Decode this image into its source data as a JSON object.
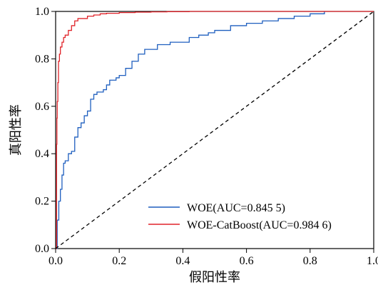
{
  "chart_data": {
    "type": "line",
    "xlabel": "假阳性率",
    "ylabel": "真阳性率",
    "xlim": [
      0.0,
      1.0
    ],
    "ylim": [
      0.0,
      1.0
    ],
    "x_ticks": [
      "0.0",
      "0.2",
      "0.4",
      "0.6",
      "0.8",
      "1.0"
    ],
    "y_ticks": [
      "0.0",
      "0.2",
      "0.4",
      "0.6",
      "0.8",
      "1.0"
    ],
    "grid": false,
    "legend_position": "bottom-right",
    "series": [
      {
        "name": "WOE(AUC=0.845 5)",
        "color": "#1f5fbf",
        "x": [
          0.0,
          0.005,
          0.01,
          0.015,
          0.02,
          0.025,
          0.03,
          0.04,
          0.05,
          0.06,
          0.07,
          0.08,
          0.09,
          0.1,
          0.11,
          0.12,
          0.13,
          0.14,
          0.15,
          0.16,
          0.17,
          0.18,
          0.19,
          0.2,
          0.22,
          0.24,
          0.26,
          0.28,
          0.3,
          0.32,
          0.34,
          0.36,
          0.38,
          0.4,
          0.42,
          0.45,
          0.48,
          0.5,
          0.55,
          0.6,
          0.65,
          0.7,
          0.75,
          0.8,
          0.845
        ],
        "y": [
          0.0,
          0.12,
          0.2,
          0.25,
          0.31,
          0.36,
          0.37,
          0.4,
          0.41,
          0.47,
          0.51,
          0.53,
          0.56,
          0.58,
          0.63,
          0.65,
          0.66,
          0.66,
          0.67,
          0.69,
          0.71,
          0.71,
          0.72,
          0.73,
          0.76,
          0.79,
          0.82,
          0.84,
          0.84,
          0.86,
          0.86,
          0.87,
          0.87,
          0.87,
          0.89,
          0.9,
          0.91,
          0.92,
          0.94,
          0.95,
          0.96,
          0.97,
          0.98,
          0.99,
          1.0
        ]
      },
      {
        "name": "WOE-CatBoost(AUC=0.984 6)",
        "color": "#e0242a",
        "x": [
          0.0,
          0.003,
          0.004,
          0.005,
          0.007,
          0.009,
          0.012,
          0.015,
          0.02,
          0.025,
          0.03,
          0.04,
          0.05,
          0.06,
          0.07,
          0.08,
          0.1,
          0.12,
          0.14,
          0.16,
          0.2,
          0.25,
          0.3,
          0.35,
          0.42,
          0.5,
          0.6,
          0.7,
          0.8,
          0.9,
          1.0
        ],
        "y": [
          0.0,
          0.44,
          0.55,
          0.62,
          0.7,
          0.79,
          0.82,
          0.85,
          0.87,
          0.89,
          0.9,
          0.92,
          0.94,
          0.96,
          0.97,
          0.97,
          0.98,
          0.985,
          0.99,
          0.992,
          0.995,
          0.997,
          0.998,
          0.999,
          1.0,
          1.0,
          1.0,
          1.0,
          1.0,
          1.0,
          1.0
        ]
      },
      {
        "name": "",
        "color": "#000000",
        "dashed": true,
        "x": [
          0.0,
          1.0
        ],
        "y": [
          0.0,
          1.0
        ]
      }
    ],
    "legend": [
      "WOE(AUC=0.845 5)",
      "WOE-CatBoost(AUC=0.984 6)"
    ]
  }
}
